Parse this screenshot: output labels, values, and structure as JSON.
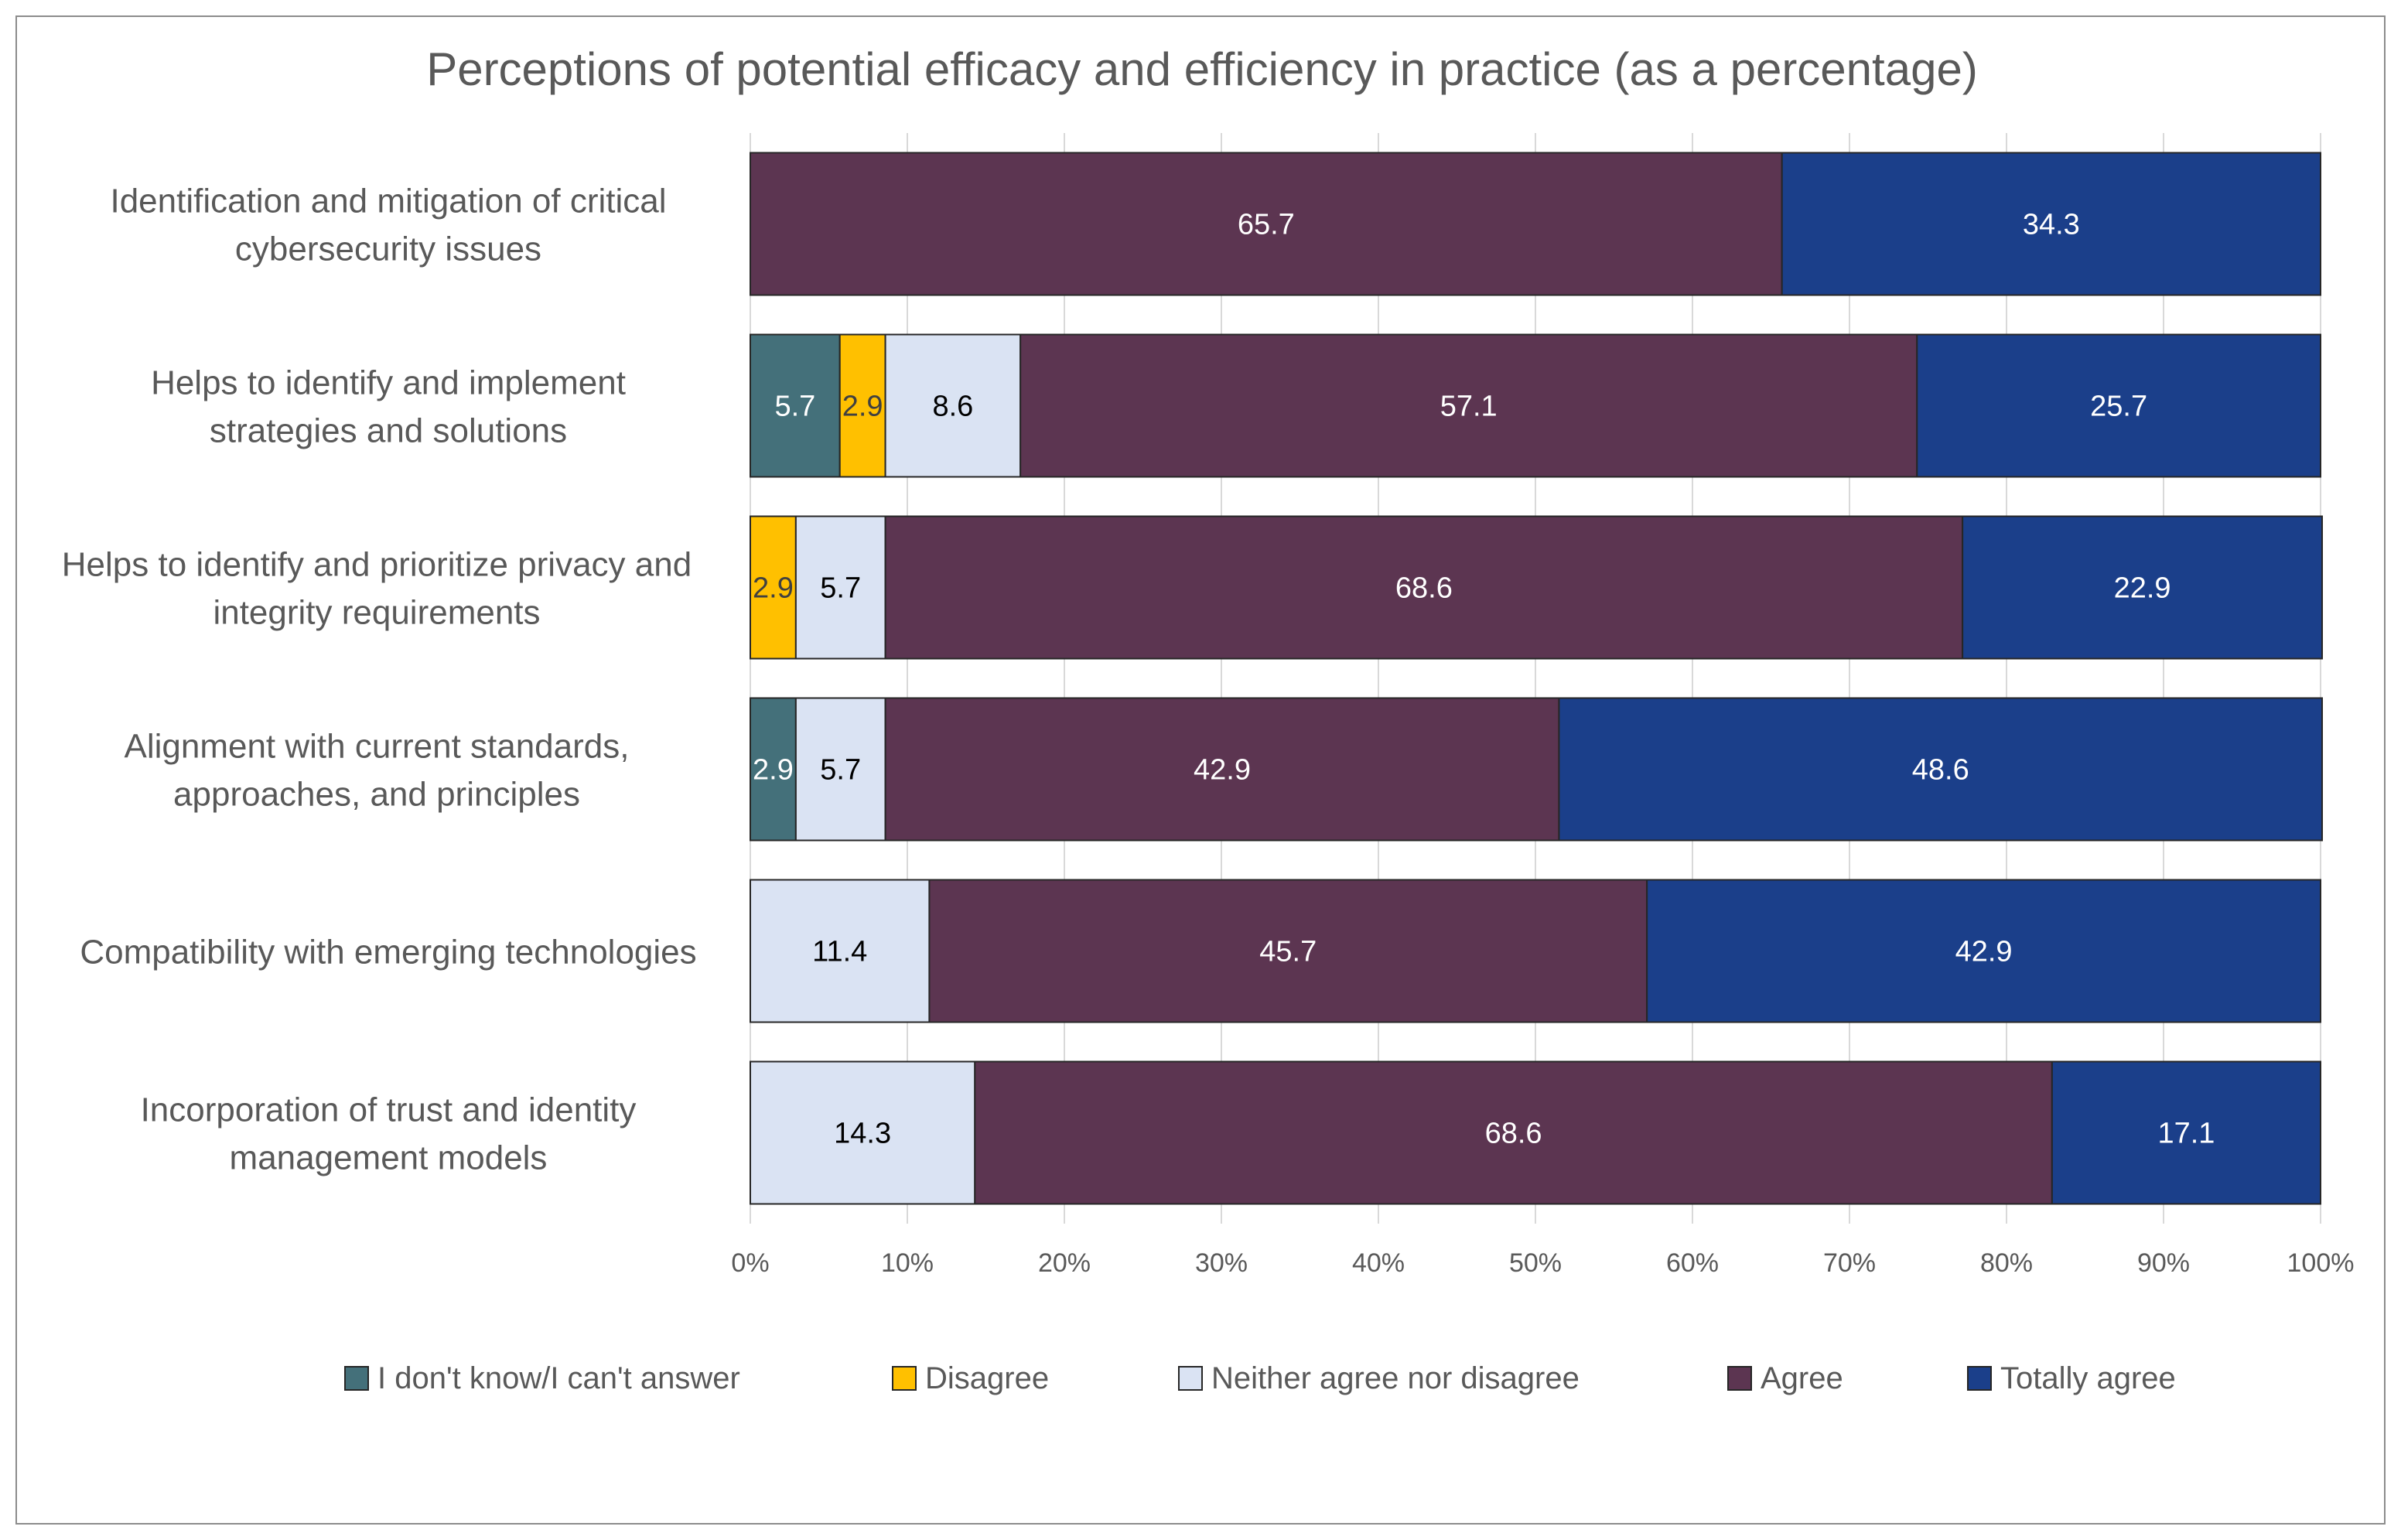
{
  "chart_data": {
    "type": "bar",
    "orientation": "horizontal",
    "stacked": true,
    "title": "Perceptions of potential efficacy and efficiency in practice (as a percentage)",
    "xlabel": "",
    "ylabel": "",
    "xlim": [
      0,
      100
    ],
    "x_ticks": [
      "0%",
      "10%",
      "20%",
      "30%",
      "40%",
      "50%",
      "60%",
      "70%",
      "80%",
      "90%",
      "100%"
    ],
    "grid": true,
    "legend_position": "bottom",
    "categories": [
      [
        "Identification and mitigation of critical",
        "cybersecurity issues"
      ],
      [
        "Helps to identify and implement",
        "strategies and solutions"
      ],
      [
        "Helps to identify and prioritize privacy and",
        "integrity requirements"
      ],
      [
        "Alignment with current standards,",
        "approaches, and principles"
      ],
      [
        "Compatibility with emerging technologies"
      ],
      [
        "Incorporation of trust and identity",
        "management models"
      ]
    ],
    "series": [
      {
        "name": "I don't know/I can't answer",
        "color": "#44707a",
        "label_color": "#ffffff",
        "values": [
          0,
          5.7,
          0,
          2.9,
          0,
          0
        ]
      },
      {
        "name": "Disagree",
        "color": "#ffc000",
        "label_color": "#404040",
        "values": [
          0,
          2.9,
          2.9,
          0,
          0,
          0
        ]
      },
      {
        "name": "Neither agree nor disagree",
        "color": "#dae3f3",
        "label_color": "#000000",
        "values": [
          0,
          8.6,
          5.7,
          5.7,
          11.4,
          14.3
        ]
      },
      {
        "name": "Agree",
        "color": "#5c3551",
        "label_color": "#ffffff",
        "values": [
          65.7,
          57.1,
          68.6,
          42.9,
          45.7,
          68.6
        ]
      },
      {
        "name": "Totally agree",
        "color": "#1b3f8a",
        "label_color": "#ffffff",
        "values": [
          34.3,
          25.7,
          22.9,
          48.6,
          42.9,
          17.1
        ]
      }
    ]
  }
}
